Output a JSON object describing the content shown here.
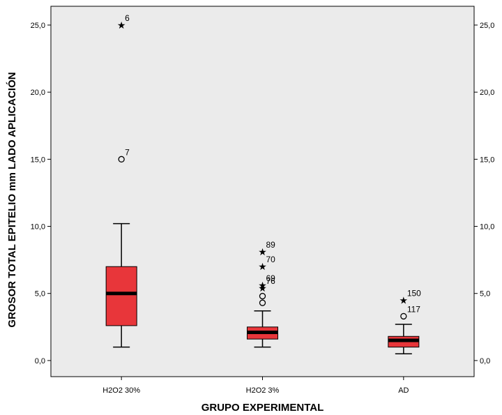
{
  "chart_data": {
    "type": "box",
    "xlabel": "GRUPO EXPERIMENTAL",
    "ylabel": "GROSOR TOTAL EPITELIO mm LADO APLICACIÓN",
    "ylim": [
      -1.2,
      26.4
    ],
    "yticks": [
      "0,0",
      "5,0",
      "10,0",
      "15,0",
      "20,0",
      "25,0"
    ],
    "ytick_values": [
      0,
      5,
      10,
      15,
      20,
      25
    ],
    "background": "#ebebeb",
    "box_color": "#e8363a",
    "grid": false,
    "categories": [
      "H2O2 30%",
      "H2O2 3%",
      "AD"
    ],
    "boxes": [
      {
        "category": "H2O2 30%",
        "whisker_low": 1.0,
        "q1": 2.6,
        "median": 5.0,
        "q3": 7.0,
        "whisker_high": 10.2,
        "outliers": [
          {
            "value": 25.0,
            "kind": "extreme",
            "label": "6"
          },
          {
            "value": 15.0,
            "kind": "outlier",
            "label": "7"
          }
        ]
      },
      {
        "category": "H2O2 3%",
        "whisker_low": 1.0,
        "q1": 1.6,
        "median": 2.1,
        "q3": 2.5,
        "whisker_high": 3.7,
        "outliers": [
          {
            "value": 8.1,
            "kind": "extreme",
            "label": "89"
          },
          {
            "value": 7.0,
            "kind": "extreme",
            "label": "70"
          },
          {
            "value": 5.6,
            "kind": "extreme",
            "label": "69"
          },
          {
            "value": 5.4,
            "kind": "extreme",
            "label": "76"
          },
          {
            "value": 4.8,
            "kind": "outlier",
            "label": ""
          },
          {
            "value": 4.3,
            "kind": "outlier",
            "label": ""
          }
        ]
      },
      {
        "category": "AD",
        "whisker_low": 0.5,
        "q1": 1.0,
        "median": 1.5,
        "q3": 1.8,
        "whisker_high": 2.7,
        "outliers": [
          {
            "value": 4.5,
            "kind": "extreme",
            "label": "150"
          },
          {
            "value": 3.3,
            "kind": "outlier",
            "label": "117"
          }
        ]
      }
    ]
  }
}
